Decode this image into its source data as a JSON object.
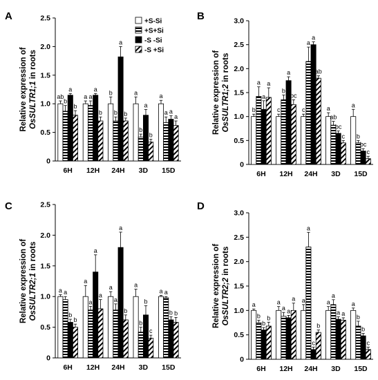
{
  "legend": [
    {
      "label": "+S-Si",
      "pattern": "white"
    },
    {
      "label": "+S+Si",
      "pattern": "hstripe"
    },
    {
      "label": "-S -Si",
      "pattern": "black"
    },
    {
      "label": "-S +Si",
      "pattern": "diag"
    }
  ],
  "chart_data": [
    {
      "type": "bar",
      "panel": "A",
      "ylabel_line1": "Relative expression of",
      "ylabel_gene": "OsSULTR1;1",
      "ylabel_suffix": " in roots",
      "categories": [
        "6H",
        "12H",
        "24H",
        "3D",
        "15D"
      ],
      "ylim": [
        0,
        2.5
      ],
      "yticks": [
        "0",
        "0.5",
        "1.0",
        "1.5",
        "2.0",
        "2.5"
      ],
      "series": [
        {
          "name": "+S-Si",
          "values": [
            1.0,
            1.0,
            1.0,
            1.0,
            1.0
          ],
          "errors": [
            0.05,
            0.05,
            0.12,
            0.12,
            0.06
          ],
          "letters": [
            "ab",
            "a",
            "b",
            "a",
            "a"
          ]
        },
        {
          "name": "+S+Si",
          "values": [
            0.87,
            0.97,
            0.7,
            0.42,
            0.67
          ],
          "errors": [
            0.1,
            0.08,
            0.07,
            0.05,
            0.1
          ],
          "letters": [
            "b",
            "a",
            "b",
            "b",
            "a"
          ]
        },
        {
          "name": "-S -Si",
          "values": [
            1.15,
            1.15,
            1.82,
            0.8,
            0.73
          ],
          "errors": [
            0.03,
            0.03,
            0.18,
            0.1,
            0.06
          ],
          "letters": [
            "a",
            "a",
            "a",
            "a",
            "a"
          ]
        },
        {
          "name": "-S +Si",
          "values": [
            0.8,
            0.7,
            0.7,
            0.33,
            0.62
          ],
          "errors": [
            0.08,
            0.07,
            0.05,
            0.05,
            0.08
          ],
          "letters": [
            "b",
            "b",
            "b",
            "b",
            "a"
          ]
        }
      ]
    },
    {
      "type": "bar",
      "panel": "B",
      "ylabel_line1": "Relative expression of",
      "ylabel_gene": "OsSULTR1;2",
      "ylabel_suffix": " in roots",
      "categories": [
        "6H",
        "12H",
        "24H",
        "3D",
        "15D"
      ],
      "ylim": [
        0,
        3.0
      ],
      "yticks": [
        "0",
        "0.5",
        "1.0",
        "1.5",
        "2.0",
        "2.5",
        "3.0"
      ],
      "series": [
        {
          "name": "+S-Si",
          "values": [
            1.0,
            1.0,
            1.0,
            1.0,
            1.0
          ],
          "errors": [
            0.05,
            0.05,
            0.05,
            0.08,
            0.15
          ],
          "letters": [
            "b",
            "c",
            "c",
            "a",
            "a"
          ]
        },
        {
          "name": "+S+Si",
          "values": [
            1.42,
            1.35,
            2.15,
            0.82,
            0.45
          ],
          "errors": [
            0.2,
            0.1,
            0.3,
            0.08,
            0.05
          ],
          "letters": [
            "a",
            "b",
            "a",
            "ab",
            "b"
          ]
        },
        {
          "name": "-S -Si",
          "values": [
            1.15,
            1.75,
            2.5,
            0.65,
            0.28
          ],
          "errors": [
            0.18,
            0.08,
            0.06,
            0.05,
            0.05
          ],
          "letters": [
            "a",
            "a",
            "a",
            "bc",
            "bc"
          ]
        },
        {
          "name": "-S +Si",
          "values": [
            1.4,
            1.25,
            1.8,
            0.45,
            0.12
          ],
          "errors": [
            0.2,
            0.1,
            0.05,
            0.05,
            0.05
          ],
          "letters": [
            "a",
            "bc",
            "ab",
            "c",
            "c"
          ]
        }
      ]
    },
    {
      "type": "bar",
      "panel": "C",
      "ylabel_line1": "Relative expression of",
      "ylabel_gene": "OsSULTR2;1",
      "ylabel_suffix": " in roots",
      "categories": [
        "6H",
        "12H",
        "24H",
        "3D",
        "15D"
      ],
      "ylim": [
        0,
        2.5
      ],
      "yticks": [
        "0",
        "0.5",
        "1.0",
        "1.5",
        "2.0",
        "2.5"
      ],
      "series": [
        {
          "name": "+S-Si",
          "values": [
            1.0,
            1.0,
            1.0,
            1.0,
            1.0
          ],
          "errors": [
            0.03,
            0.18,
            0.08,
            0.12,
            0.02
          ],
          "letters": [
            "a",
            "a",
            "a",
            "a",
            "a"
          ]
        },
        {
          "name": "+S+Si",
          "values": [
            0.95,
            0.78,
            0.78,
            0.42,
            0.98
          ],
          "errors": [
            0.05,
            0.06,
            0.1,
            0.08,
            0.02
          ],
          "letters": [
            "a",
            "a",
            "a",
            "b",
            "a"
          ]
        },
        {
          "name": "-S -Si",
          "values": [
            0.58,
            1.4,
            1.8,
            0.7,
            0.62
          ],
          "errors": [
            0.05,
            0.28,
            0.25,
            0.15,
            0.05
          ],
          "letters": [
            "b",
            "a",
            "a",
            "b",
            "b"
          ]
        },
        {
          "name": "-S +Si",
          "values": [
            0.5,
            0.8,
            0.62,
            0.32,
            0.58
          ],
          "errors": [
            0.05,
            0.15,
            0.08,
            0.05,
            0.08
          ],
          "letters": [
            "b",
            "a",
            "b",
            "c",
            "b"
          ]
        }
      ]
    },
    {
      "type": "bar",
      "panel": "D",
      "ylabel_line1": "Relative expression of",
      "ylabel_gene": "OsSULTR2;2",
      "ylabel_suffix": " in roots",
      "categories": [
        "6H",
        "12H",
        "24H",
        "3D",
        "15D"
      ],
      "ylim": [
        0,
        3.0
      ],
      "yticks": [
        "0",
        "0.5",
        "1.0",
        "1.5",
        "2.0",
        "2.5",
        "3.0"
      ],
      "series": [
        {
          "name": "+S-Si",
          "values": [
            1.0,
            1.0,
            1.0,
            1.0,
            1.0
          ],
          "errors": [
            0.03,
            0.08,
            0.12,
            0.08,
            0.05
          ],
          "letters": [
            "a",
            "a",
            "a",
            "a",
            "a"
          ]
        },
        {
          "name": "+S+Si",
          "values": [
            0.75,
            0.88,
            2.3,
            1.12,
            0.68
          ],
          "errors": [
            0.05,
            0.08,
            0.3,
            0.1,
            0.1
          ],
          "letters": [
            "b",
            "a",
            "a",
            "a",
            "b"
          ]
        },
        {
          "name": "-S -Si",
          "values": [
            0.6,
            0.85,
            0.2,
            0.82,
            0.48
          ],
          "errors": [
            0.05,
            0.05,
            0.05,
            0.05,
            0.05
          ],
          "letters": [
            "b",
            "a",
            "c",
            "a",
            "b"
          ]
        },
        {
          "name": "-S +Si",
          "values": [
            0.68,
            1.0,
            0.55,
            0.8,
            0.2
          ],
          "errors": [
            0.08,
            0.15,
            0.05,
            0.05,
            0.05
          ],
          "letters": [
            "b",
            "a",
            "b",
            "a",
            "c"
          ]
        }
      ]
    }
  ]
}
